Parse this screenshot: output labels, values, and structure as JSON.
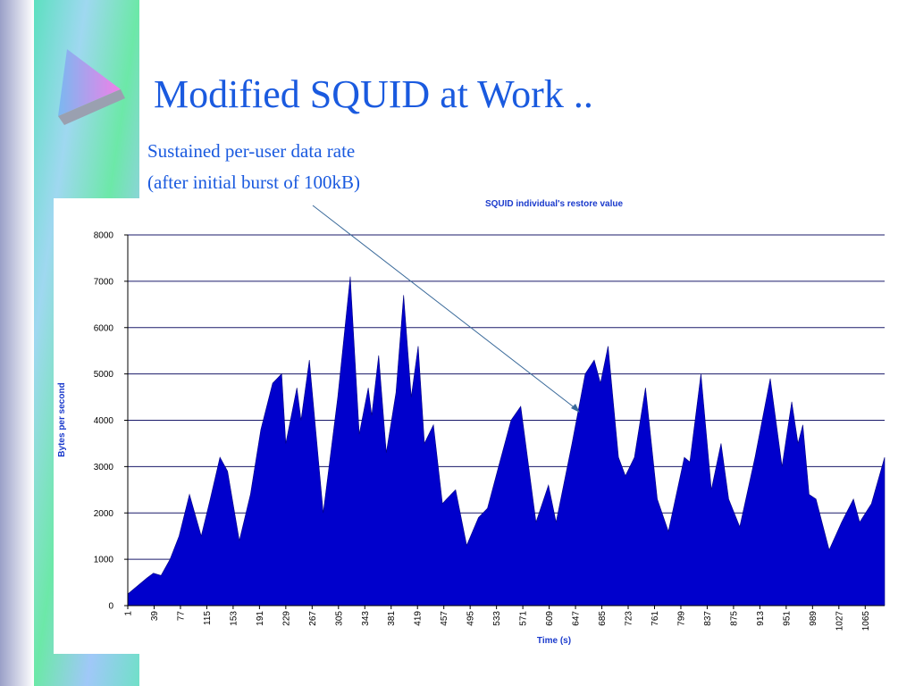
{
  "slide": {
    "title": "Modified SQUID at Work ..",
    "subtitle": [
      "Sustained per-user data rate",
      "(after initial burst of 100kB)"
    ]
  },
  "chart_data": {
    "type": "area",
    "title": "SQUID individual's restore value",
    "x_label": "Time (s)",
    "y_label": "Bytes per second",
    "color": "#0000cc",
    "grid": true,
    "x": [
      1,
      29,
      38,
      49,
      62,
      75,
      90,
      107,
      120,
      134,
      145,
      162,
      178,
      193,
      210,
      223,
      229,
      245,
      251,
      263,
      283,
      304,
      322,
      335,
      348,
      353,
      363,
      374,
      388,
      399,
      410,
      420,
      429,
      442,
      455,
      461,
      474,
      490,
      507,
      520,
      536,
      554,
      568,
      590,
      608,
      619,
      642,
      661,
      674,
      683,
      694,
      709,
      719,
      732,
      748,
      765,
      781,
      804,
      812,
      828,
      843,
      857,
      868,
      884,
      906,
      928,
      945,
      959,
      968,
      975,
      984,
      994,
      1013,
      1031,
      1048,
      1057,
      1074,
      1093
    ],
    "values": [
      250,
      600,
      700,
      650,
      1000,
      1500,
      2400,
      1500,
      2300,
      3200,
      2900,
      1400,
      2400,
      3800,
      4800,
      5000,
      3500,
      4700,
      4000,
      5300,
      2000,
      4500,
      7100,
      3700,
      4700,
      4100,
      5400,
      3300,
      4600,
      6700,
      4500,
      5600,
      3500,
      3900,
      2200,
      2300,
      2500,
      1300,
      1900,
      2100,
      3000,
      4000,
      4300,
      1800,
      2600,
      1800,
      3500,
      5000,
      5300,
      4800,
      5600,
      3200,
      2800,
      3200,
      4700,
      2300,
      1600,
      3200,
      3100,
      5000,
      2500,
      3500,
      2300,
      1700,
      3200,
      4900,
      3000,
      4400,
      3500,
      3900,
      2400,
      2300,
      1200,
      1800,
      2300,
      1800,
      2200,
      3200
    ],
    "xlim": [
      1,
      1093
    ],
    "xticks": [
      1,
      39,
      77,
      115,
      153,
      191,
      229,
      267,
      305,
      343,
      381,
      419,
      457,
      495,
      533,
      571,
      609,
      647,
      685,
      723,
      761,
      799,
      837,
      875,
      913,
      951,
      989,
      1027,
      1065
    ],
    "ylim": [
      0,
      8000
    ],
    "yticks": [
      0,
      1000,
      2000,
      3000,
      4000,
      5000,
      6000,
      7000,
      8000
    ]
  }
}
